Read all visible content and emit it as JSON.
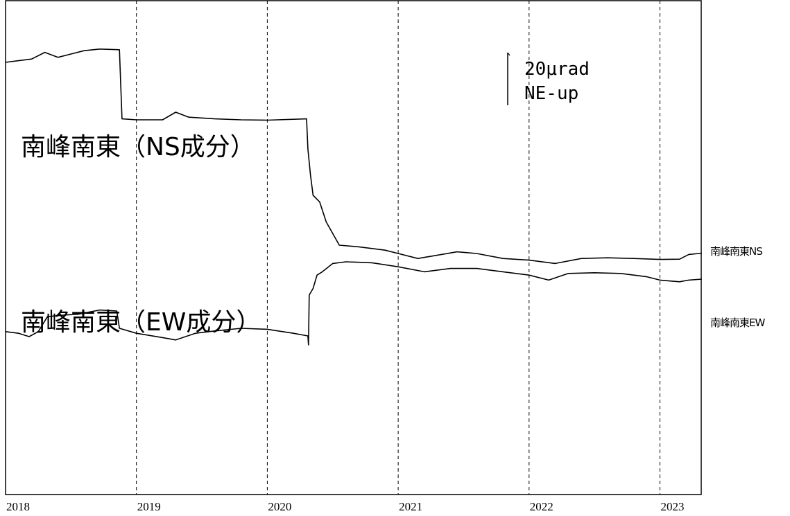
{
  "chart_data": {
    "type": "line",
    "x_ticks": [
      "2018",
      "2019",
      "2020",
      "2021",
      "2022",
      "2023"
    ],
    "xlim": [
      "2018-01-01",
      "2023-04-01"
    ],
    "grid": "vertical dashed lines at each year",
    "scale_bar": {
      "value_label": "20μrad",
      "direction_label": "NE-up"
    },
    "series": [
      {
        "name": "南峰南東NS",
        "title": "南峰南東（NS成分）",
        "unit": "μrad",
        "points": [
          [
            2018.0,
            0
          ],
          [
            2018.1,
            0.5
          ],
          [
            2018.2,
            1
          ],
          [
            2018.3,
            3
          ],
          [
            2018.4,
            1.5
          ],
          [
            2018.5,
            2.5
          ],
          [
            2018.6,
            3.5
          ],
          [
            2018.72,
            4
          ],
          [
            2018.87,
            3.8
          ],
          [
            2018.89,
            -17
          ],
          [
            2019.0,
            -17.3
          ],
          [
            2019.2,
            -17.3
          ],
          [
            2019.3,
            -15
          ],
          [
            2019.4,
            -16.5
          ],
          [
            2019.6,
            -17
          ],
          [
            2019.8,
            -17.3
          ],
          [
            2020.0,
            -17.4
          ],
          [
            2020.3,
            -17
          ],
          [
            2020.31,
            -26
          ],
          [
            2020.33,
            -34
          ],
          [
            2020.35,
            -40
          ],
          [
            2020.4,
            -42
          ],
          [
            2020.45,
            -48
          ],
          [
            2020.55,
            -55
          ],
          [
            2020.7,
            -55.5
          ],
          [
            2020.9,
            -56.5
          ],
          [
            2021.0,
            -57.5
          ],
          [
            2021.15,
            -59
          ],
          [
            2021.3,
            -58
          ],
          [
            2021.45,
            -57
          ],
          [
            2021.6,
            -57.5
          ],
          [
            2021.8,
            -59
          ],
          [
            2022.0,
            -59.5
          ],
          [
            2022.2,
            -60.5
          ],
          [
            2022.4,
            -59
          ],
          [
            2022.6,
            -58.8
          ],
          [
            2022.8,
            -59
          ],
          [
            2023.0,
            -59.3
          ],
          [
            2023.15,
            -59.2
          ],
          [
            2023.22,
            -57.8
          ],
          [
            2023.32,
            -57.4
          ]
        ]
      },
      {
        "name": "南峰南東EW",
        "title": "南峰南東（EW成分）",
        "unit": "μrad",
        "points": [
          [
            2018.0,
            -81
          ],
          [
            2018.1,
            -81.5
          ],
          [
            2018.18,
            -82.5
          ],
          [
            2018.25,
            -81
          ],
          [
            2018.32,
            -76.5
          ],
          [
            2018.45,
            -76
          ],
          [
            2018.55,
            -75.8
          ],
          [
            2018.72,
            -74.5
          ],
          [
            2018.85,
            -74.8
          ],
          [
            2018.87,
            -80
          ],
          [
            2019.0,
            -81.5
          ],
          [
            2019.2,
            -82.8
          ],
          [
            2019.3,
            -83.5
          ],
          [
            2019.45,
            -81.5
          ],
          [
            2019.6,
            -80.8
          ],
          [
            2019.8,
            -80
          ],
          [
            2020.0,
            -80.3
          ],
          [
            2020.2,
            -81.5
          ],
          [
            2020.31,
            -82.3
          ],
          [
            2020.315,
            -85
          ],
          [
            2020.32,
            -70
          ],
          [
            2020.35,
            -68
          ],
          [
            2020.38,
            -64
          ],
          [
            2020.42,
            -63
          ],
          [
            2020.5,
            -60.5
          ],
          [
            2020.6,
            -60
          ],
          [
            2020.8,
            -60.3
          ],
          [
            2021.0,
            -61.5
          ],
          [
            2021.2,
            -63
          ],
          [
            2021.4,
            -62
          ],
          [
            2021.6,
            -62
          ],
          [
            2021.8,
            -63
          ],
          [
            2022.0,
            -64
          ],
          [
            2022.15,
            -65.5
          ],
          [
            2022.3,
            -63.5
          ],
          [
            2022.5,
            -63.3
          ],
          [
            2022.7,
            -63.5
          ],
          [
            2022.9,
            -64.5
          ],
          [
            2023.0,
            -65.5
          ],
          [
            2023.15,
            -66
          ],
          [
            2023.22,
            -65.5
          ],
          [
            2023.32,
            -65.2
          ]
        ]
      }
    ]
  }
}
